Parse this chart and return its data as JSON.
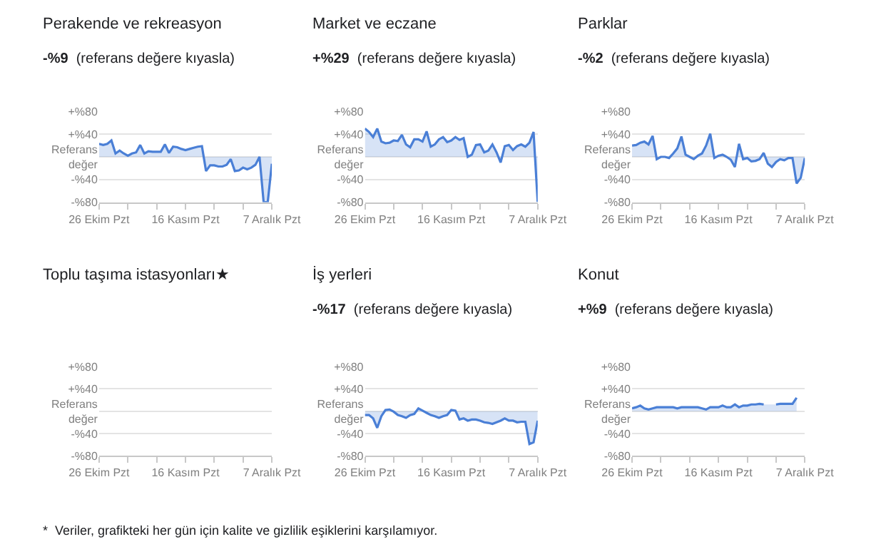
{
  "chart_data": [
    {
      "type": "area",
      "title": "Perakende ve rekreasyon",
      "subtitle": "-%9  (referans değere kıyasla)",
      "grid": "y",
      "line_style": "solid",
      "x": [
        "--10-26",
        "--10-27",
        "--10-28",
        "--10-29",
        "--10-30",
        "--10-31",
        "--11-01",
        "--11-02",
        "--11-03",
        "--11-04",
        "--11-05",
        "--11-06",
        "--11-07",
        "--11-08",
        "--11-09",
        "--11-10",
        "--11-11",
        "--11-12",
        "--11-13",
        "--11-14",
        "--11-15",
        "--11-16",
        "--11-17",
        "--11-18",
        "--11-19",
        "--11-20",
        "--11-21",
        "--11-22",
        "--11-23",
        "--11-24",
        "--11-25",
        "--11-26",
        "--11-27",
        "--11-28",
        "--11-29",
        "--11-30",
        "--12-01",
        "--12-02",
        "--12-03",
        "--12-04",
        "--12-05",
        "--12-06",
        "--12-07"
      ],
      "series": [
        {
          "color": "#4a7fd6",
          "values": [
            23,
            21,
            23,
            29,
            6,
            11,
            6,
            2,
            6,
            8,
            21,
            6,
            10,
            9,
            9,
            9,
            22,
            7,
            18,
            17,
            14,
            12,
            14,
            16,
            18,
            19,
            -25,
            -15,
            -15,
            -17,
            -17,
            -14,
            -4,
            -25,
            -24,
            -19,
            -22,
            -19,
            -14,
            0,
            -80,
            -80,
            -12
          ]
        }
      ],
      "xlim": [
        "--10-26",
        "--12-07"
      ],
      "xticks": [
        {
          "value": "--10-26",
          "label": "26 Ekim Pzt"
        },
        {
          "value": "--11-02",
          "label": null
        },
        {
          "value": "--11-09",
          "label": null
        },
        {
          "value": "--11-16",
          "label": "16 Kasım Pzt"
        },
        {
          "value": "--11-23",
          "label": null
        },
        {
          "value": "--11-30",
          "label": null
        },
        {
          "value": "--12-07",
          "label": "7 Aralık Pzt"
        }
      ],
      "ylim": [
        -80,
        80
      ],
      "yticks": [
        {
          "value": 80,
          "label": "+%80"
        },
        {
          "value": 40,
          "label": "+%40"
        },
        {
          "value": 0,
          "label": "Referans\ndeğer"
        },
        {
          "value": -40,
          "label": "-%40"
        },
        {
          "value": -80,
          "label": "-%80"
        }
      ]
    },
    {
      "type": "area",
      "title": "Market ve eczane",
      "subtitle": "+%29  (referans değere kıyasla)",
      "grid": "y",
      "line_style": "solid",
      "x": [
        "--10-26",
        "--10-27",
        "--10-28",
        "--10-29",
        "--10-30",
        "--10-31",
        "--11-01",
        "--11-02",
        "--11-03",
        "--11-04",
        "--11-05",
        "--11-06",
        "--11-07",
        "--11-08",
        "--11-09",
        "--11-10",
        "--11-11",
        "--11-12",
        "--11-13",
        "--11-14",
        "--11-15",
        "--11-16",
        "--11-17",
        "--11-18",
        "--11-19",
        "--11-20",
        "--11-21",
        "--11-22",
        "--11-23",
        "--11-24",
        "--11-25",
        "--11-26",
        "--11-27",
        "--11-28",
        "--11-29",
        "--11-30",
        "--12-01",
        "--12-02",
        "--12-03",
        "--12-04",
        "--12-05",
        "--12-06",
        "--12-07"
      ],
      "series": [
        {
          "color": "#4a7fd6",
          "values": [
            50,
            44,
            35,
            50,
            27,
            24,
            25,
            29,
            28,
            39,
            22,
            17,
            31,
            31,
            27,
            45,
            18,
            22,
            31,
            35,
            26,
            29,
            35,
            30,
            33,
            0,
            4,
            21,
            22,
            8,
            11,
            22,
            8,
            -10,
            19,
            21,
            12,
            19,
            22,
            18,
            25,
            44,
            -80
          ]
        }
      ],
      "xlim": [
        "--10-26",
        "--12-07"
      ],
      "xticks": [
        {
          "value": "--10-26",
          "label": "26 Ekim Pzt"
        },
        {
          "value": "--11-02",
          "label": null
        },
        {
          "value": "--11-09",
          "label": null
        },
        {
          "value": "--11-16",
          "label": "16 Kasım Pzt"
        },
        {
          "value": "--11-23",
          "label": null
        },
        {
          "value": "--11-30",
          "label": null
        },
        {
          "value": "--12-07",
          "label": "7 Aralık Pzt"
        }
      ],
      "ylim": [
        -80,
        80
      ],
      "yticks": [
        {
          "value": 80,
          "label": "+%80"
        },
        {
          "value": 40,
          "label": "+%40"
        },
        {
          "value": 0,
          "label": "Referans\ndeğer"
        },
        {
          "value": -40,
          "label": "-%40"
        },
        {
          "value": -80,
          "label": "-%80"
        }
      ]
    },
    {
      "type": "area",
      "title": "Parklar",
      "subtitle": "-%2  (referans değere kıyasla)",
      "grid": "y",
      "line_style": "solid",
      "x": [
        "--10-26",
        "--10-27",
        "--10-28",
        "--10-29",
        "--10-30",
        "--10-31",
        "--11-01",
        "--11-02",
        "--11-03",
        "--11-04",
        "--11-05",
        "--11-06",
        "--11-07",
        "--11-08",
        "--11-09",
        "--11-10",
        "--11-11",
        "--11-12",
        "--11-13",
        "--11-14",
        "--11-15",
        "--11-16",
        "--11-17",
        "--11-18",
        "--11-19",
        "--11-20",
        "--11-21",
        "--11-22",
        "--11-23",
        "--11-24",
        "--11-25",
        "--11-26",
        "--11-27",
        "--11-28",
        "--11-29",
        "--11-30",
        "--12-01",
        "--12-02",
        "--12-03",
        "--12-04",
        "--12-05",
        "--12-06",
        "--12-07"
      ],
      "series": [
        {
          "color": "#4a7fd6",
          "values": [
            20,
            21,
            25,
            27,
            22,
            37,
            -4,
            0,
            0,
            -2,
            6,
            15,
            36,
            4,
            0,
            -4,
            2,
            6,
            20,
            41,
            -2,
            2,
            4,
            0,
            -5,
            -18,
            23,
            -4,
            -2,
            -8,
            -7,
            -4,
            7,
            -12,
            -18,
            -9,
            -4,
            -6,
            -2,
            -2,
            -47,
            -37,
            -2
          ]
        }
      ],
      "xlim": [
        "--10-26",
        "--12-07"
      ],
      "xticks": [
        {
          "value": "--10-26",
          "label": "26 Ekim Pzt"
        },
        {
          "value": "--11-02",
          "label": null
        },
        {
          "value": "--11-09",
          "label": null
        },
        {
          "value": "--11-16",
          "label": "16 Kasım Pzt"
        },
        {
          "value": "--11-23",
          "label": null
        },
        {
          "value": "--11-30",
          "label": null
        },
        {
          "value": "--12-07",
          "label": "7 Aralık Pzt"
        }
      ],
      "ylim": [
        -80,
        80
      ],
      "yticks": [
        {
          "value": 80,
          "label": "+%80"
        },
        {
          "value": 40,
          "label": "+%40"
        },
        {
          "value": 0,
          "label": "Referans\ndeğer"
        },
        {
          "value": -40,
          "label": "-%40"
        },
        {
          "value": -80,
          "label": "-%80"
        }
      ]
    },
    {
      "type": "area",
      "title": "Toplu taşıma istasyonları★",
      "grid": "y",
      "annotations": [
        "*  Veriler, grafikteki her gün için kalite ve gizlilik eşiklerini karşılamıyor."
      ],
      "xlim": [
        "--10-26",
        "--12-07"
      ],
      "xticks": [
        {
          "value": "--10-26",
          "label": "26 Ekim Pzt"
        },
        {
          "value": "--11-02",
          "label": null
        },
        {
          "value": "--11-09",
          "label": null
        },
        {
          "value": "--11-16",
          "label": "16 Kasım Pzt"
        },
        {
          "value": "--11-23",
          "label": null
        },
        {
          "value": "--11-30",
          "label": null
        },
        {
          "value": "--12-07",
          "label": "7 Aralık Pzt"
        }
      ],
      "ylim": [
        -80,
        80
      ],
      "yticks": [
        {
          "value": 80,
          "label": "+%80"
        },
        {
          "value": 40,
          "label": "+%40"
        },
        {
          "value": 0,
          "label": "Referans\ndeğer"
        },
        {
          "value": -40,
          "label": "-%40"
        },
        {
          "value": -80,
          "label": "-%80"
        }
      ]
    },
    {
      "type": "area",
      "title": "İş yerleri",
      "subtitle": "-%17  (referans değere kıyasla)",
      "grid": "y",
      "line_style": "solid",
      "x": [
        "--10-26",
        "--10-27",
        "--10-28",
        "--10-29",
        "--10-30",
        "--10-31",
        "--11-01",
        "--11-02",
        "--11-03",
        "--11-04",
        "--11-05",
        "--11-06",
        "--11-07",
        "--11-08",
        "--11-09",
        "--11-10",
        "--11-11",
        "--11-12",
        "--11-13",
        "--11-14",
        "--11-15",
        "--11-16",
        "--11-17",
        "--11-18",
        "--11-19",
        "--11-20",
        "--11-21",
        "--11-22",
        "--11-23",
        "--11-24",
        "--11-25",
        "--11-26",
        "--11-27",
        "--11-28",
        "--11-29",
        "--11-30",
        "--12-01",
        "--12-02",
        "--12-03",
        "--12-04",
        "--12-05",
        "--12-06",
        "--12-07"
      ],
      "series": [
        {
          "color": "#4a7fd6",
          "values": [
            -7,
            -7,
            -13,
            -30,
            -9,
            2,
            3,
            -1,
            -7,
            -9,
            -12,
            -7,
            -5,
            5,
            1,
            -3,
            -7,
            -9,
            -12,
            -9,
            -7,
            2,
            1,
            -15,
            -13,
            -17,
            -15,
            -15,
            -17,
            -20,
            -21,
            -23,
            -20,
            -17,
            -13,
            -17,
            -17,
            -20,
            -19,
            -19,
            -59,
            -56,
            -17
          ]
        }
      ],
      "xlim": [
        "--10-26",
        "--12-07"
      ],
      "xticks": [
        {
          "value": "--10-26",
          "label": "26 Ekim Pzt"
        },
        {
          "value": "--11-02",
          "label": null
        },
        {
          "value": "--11-09",
          "label": null
        },
        {
          "value": "--11-16",
          "label": "16 Kasım Pzt"
        },
        {
          "value": "--11-23",
          "label": null
        },
        {
          "value": "--11-30",
          "label": null
        },
        {
          "value": "--12-07",
          "label": "7 Aralık Pzt"
        }
      ],
      "ylim": [
        -80,
        80
      ],
      "yticks": [
        {
          "value": 80,
          "label": "+%80"
        },
        {
          "value": 40,
          "label": "+%40"
        },
        {
          "value": 0,
          "label": "Referans\ndeğer"
        },
        {
          "value": -40,
          "label": "-%40"
        },
        {
          "value": -80,
          "label": "-%80"
        }
      ]
    },
    {
      "type": "area",
      "title": "Konut",
      "subtitle": "+%9  (referans değere kıyasla)",
      "grid": "y",
      "line_style": "solid",
      "x": [
        "--10-26",
        "--10-27",
        "--10-28",
        "--10-29",
        "--10-30",
        "--10-31",
        "--11-01",
        "--11-02",
        "--11-03",
        "--11-04",
        "--11-05",
        "--11-06",
        "--11-07",
        "--11-08",
        "--11-09",
        "--11-10",
        "--11-11",
        "--11-12",
        "--11-13",
        "--11-14",
        "--11-15",
        "--11-16",
        "--11-17",
        "--11-18",
        "--11-19",
        "--11-20",
        "--11-21",
        "--11-22",
        "--11-23",
        "--11-24",
        "--11-25",
        "--11-26",
        "--11-27",
        "--11-28",
        "--11-29",
        "--11-30",
        "--12-01",
        "--12-02",
        "--12-03",
        "--12-04",
        "--12-05"
      ],
      "series": [
        {
          "color": "#4a7fd6",
          "values": [
            5,
            7,
            10,
            5,
            3,
            5,
            7,
            7,
            7,
            7,
            7,
            5,
            7,
            7,
            7,
            7,
            7,
            5,
            3,
            7,
            7,
            7,
            10,
            7,
            7,
            12,
            7,
            10,
            10,
            12,
            12,
            13,
            12,
            null,
            null,
            12,
            13,
            13,
            13,
            13,
            24
          ]
        }
      ],
      "xlim": [
        "--10-26",
        "--12-07"
      ],
      "xticks": [
        {
          "value": "--10-26",
          "label": "26 Ekim Pzt"
        },
        {
          "value": "--11-02",
          "label": null
        },
        {
          "value": "--11-09",
          "label": null
        },
        {
          "value": "--11-16",
          "label": "16 Kasım Pzt"
        },
        {
          "value": "--11-23",
          "label": null
        },
        {
          "value": "--11-30",
          "label": null
        },
        {
          "value": "--12-07",
          "label": "7 Aralık Pzt"
        }
      ],
      "ylim": [
        -80,
        80
      ],
      "yticks": [
        {
          "value": 80,
          "label": "+%80"
        },
        {
          "value": 40,
          "label": "+%40"
        },
        {
          "value": 0,
          "label": "Referans\ndeğer"
        },
        {
          "value": -40,
          "label": "-%40"
        },
        {
          "value": -80,
          "label": "-%80"
        }
      ]
    }
  ]
}
